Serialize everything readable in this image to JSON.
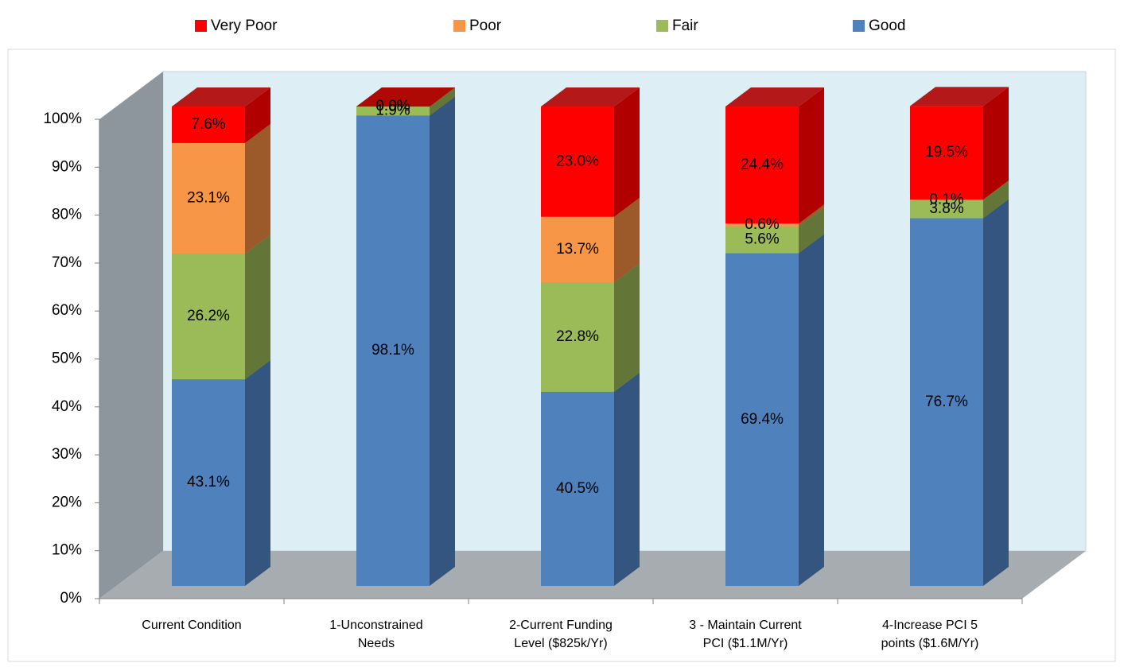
{
  "chart_data": {
    "type": "bar3d_stacked",
    "categories": [
      "Current Condition",
      "1-Unconstrained Needs",
      "2-Current Funding Level ($825k/Yr)",
      "3 - Maintain Current PCI ($1.1M/Yr)",
      "4-Increase PCI 5 points ($1.6M/Yr)"
    ],
    "series": [
      {
        "name": "Good",
        "color": "#4f81bd",
        "side_color": "#34557f",
        "values": [
          43.1,
          98.1,
          40.5,
          69.4,
          76.7
        ],
        "value_labels": [
          "43.1%",
          "98.1%",
          "40.5%",
          "69.4%",
          "76.7%"
        ]
      },
      {
        "name": "Fair",
        "color": "#9bbb59",
        "side_color": "#637637",
        "values": [
          26.2,
          1.9,
          22.8,
          5.6,
          3.8
        ],
        "value_labels": [
          "26.2%",
          "1.9%",
          "22.8%",
          "5.6%",
          "3.8%"
        ]
      },
      {
        "name": "Poor",
        "color": "#f79646",
        "side_color": "#9c5a2b",
        "values": [
          23.1,
          0.0,
          13.7,
          0.6,
          0.1
        ],
        "value_labels": [
          "23.1%",
          "0.0%",
          "13.7%",
          "0.6%",
          "0.1%"
        ]
      },
      {
        "name": "Very Poor",
        "color": "#ff0000",
        "side_color": "#b00000",
        "values": [
          7.6,
          0.0,
          23.0,
          24.4,
          19.5
        ],
        "value_labels": [
          "7.6%",
          "0.0%",
          "23.0%",
          "24.4%",
          "19.5%"
        ]
      }
    ],
    "legend_order": [
      3,
      2,
      1,
      0
    ],
    "ylim": [
      0,
      100
    ],
    "yticks": [
      {
        "value": 0,
        "label": "0%"
      },
      {
        "value": 10,
        "label": "10%"
      },
      {
        "value": 20,
        "label": "20%"
      },
      {
        "value": 30,
        "label": "30%"
      },
      {
        "value": 40,
        "label": "40%"
      },
      {
        "value": 50,
        "label": "50%"
      },
      {
        "value": 60,
        "label": "60%"
      },
      {
        "value": 70,
        "label": "70%"
      },
      {
        "value": 80,
        "label": "80%"
      },
      {
        "value": 90,
        "label": "90%"
      },
      {
        "value": 100,
        "label": "100%"
      }
    ],
    "grid": false
  }
}
